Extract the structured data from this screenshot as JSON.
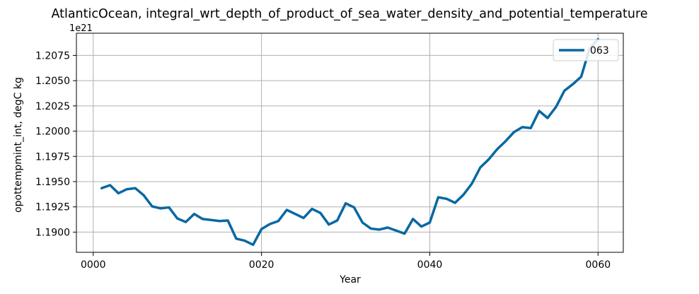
{
  "chart_data": {
    "type": "line",
    "title": "AtlanticOcean, integral_wrt_depth_of_product_of_sea_water_density_and_potential_temperature",
    "xlabel": "Year",
    "ylabel": "opottempmint_int, degC kg",
    "offset_text": "1e21",
    "xlim": [
      -2,
      63
    ],
    "ylim": [
      1.188,
      1.2097
    ],
    "x_ticks": [
      0,
      20,
      40,
      60
    ],
    "x_tick_labels": [
      "0000",
      "0020",
      "0040",
      "0060"
    ],
    "y_ticks": [
      1.19,
      1.1925,
      1.195,
      1.1975,
      1.2,
      1.2025,
      1.205,
      1.2075
    ],
    "y_tick_labels": [
      "1.1900",
      "1.1925",
      "1.1950",
      "1.1975",
      "1.2000",
      "1.2025",
      "1.2050",
      "1.2075"
    ],
    "grid": true,
    "legend_position": "top-right",
    "series": [
      {
        "name": "063",
        "color": "#0868a3",
        "x": [
          1,
          2,
          3,
          4,
          5,
          6,
          7,
          8,
          9,
          10,
          11,
          12,
          13,
          14,
          15,
          16,
          17,
          18,
          19,
          20,
          21,
          22,
          23,
          24,
          25,
          26,
          27,
          28,
          29,
          30,
          31,
          32,
          33,
          34,
          35,
          36,
          37,
          38,
          39,
          40,
          41,
          42,
          43,
          44,
          45,
          46,
          47,
          48,
          49,
          50,
          51,
          52,
          53,
          54,
          55,
          56,
          57,
          58,
          59,
          60
        ],
        "values": [
          1.19435,
          1.19465,
          1.19385,
          1.19425,
          1.19435,
          1.19365,
          1.19255,
          1.19235,
          1.19245,
          1.19135,
          1.191,
          1.1918,
          1.1913,
          1.1912,
          1.1911,
          1.19115,
          1.18935,
          1.18915,
          1.18875,
          1.1903,
          1.1908,
          1.1911,
          1.1922,
          1.1918,
          1.1914,
          1.1923,
          1.1919,
          1.19075,
          1.19115,
          1.19285,
          1.19245,
          1.19095,
          1.19035,
          1.19025,
          1.19045,
          1.19015,
          1.18985,
          1.1913,
          1.19055,
          1.19095,
          1.19345,
          1.1933,
          1.1929,
          1.1937,
          1.1948,
          1.1964,
          1.1972,
          1.1982,
          1.199,
          1.1999,
          1.2004,
          1.2003,
          1.202,
          1.2013,
          1.2024,
          1.204,
          1.20465,
          1.2054,
          1.2082,
          1.2091
        ]
      }
    ]
  }
}
